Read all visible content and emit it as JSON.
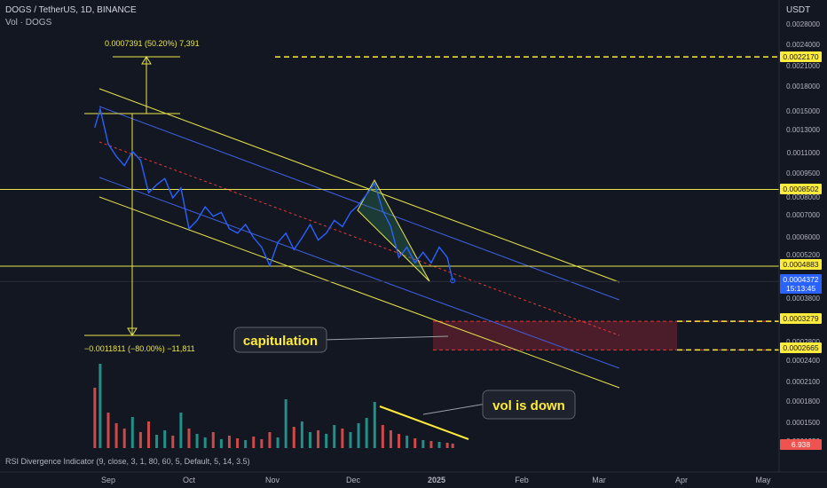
{
  "header": {
    "symbol_line": "DOGS / TetherUS, 1D, BINANCE",
    "vol_line": "Vol · DOGS",
    "currency": "USDT"
  },
  "indicator_label": "RSI Divergence Indicator (9, close, 3, 1, 80, 60, 5, Default, 5, 14, 3.5)",
  "colors": {
    "background": "#131722",
    "price_line": "#2962ff",
    "channel_outer": "#e8e44a",
    "channel_inner": "#3f5fe0",
    "midline": "#e53935",
    "capitulation_zone": "#5a1f2e",
    "vol_up": "#26a69a",
    "vol_down": "#ef5350",
    "yellow_tag": "#ffeb3b",
    "blue_tag": "#2962ff"
  },
  "price_axis": {
    "ticks": [
      "0.0028000",
      "0.0024000",
      "0.0021000",
      "0.0018000",
      "0.0015000",
      "0.0013000",
      "0.0011000",
      "0.0009500",
      "0.0008000",
      "0.0007000",
      "0.0006000",
      "0.0005200",
      "0.0003800",
      "0.0002800",
      "0.0002400",
      "0.0002100",
      "0.0001800",
      "0.0001500",
      "0.0001350"
    ]
  },
  "price_tags": [
    {
      "label": "0.0022170",
      "style": "yellow"
    },
    {
      "label": "0.0008502",
      "style": "yellow"
    },
    {
      "label": "0.0004883",
      "style": "yellow"
    },
    {
      "label": "0.0004372",
      "style": "blue"
    },
    {
      "label": "15:13:45",
      "style": "blue"
    },
    {
      "label": "0.0003279",
      "style": "yellow"
    },
    {
      "label": "0.0002665",
      "style": "yellow"
    },
    {
      "label": "6.938",
      "style": "red"
    }
  ],
  "time_axis": {
    "labels": [
      "Sep",
      "Oct",
      "Nov",
      "Dec",
      "2025",
      "Feb",
      "Mar",
      "Apr",
      "May"
    ]
  },
  "annotations": {
    "measure_top": "0.0007391 (50.20%) 7,391",
    "measure_bottom": "−0.0011811 (−80.00%) −11,811",
    "capitulation": "capitulation",
    "vol_down": "vol is down"
  },
  "chart_data": {
    "type": "line",
    "title": "DOGS / TetherUS, 1D, BINANCE",
    "xlabel": "",
    "ylabel": "",
    "log_scale": true,
    "ylim": [
      0.000135,
      0.0028
    ],
    "series": [
      {
        "name": "",
        "x": [
          "2024-08-27",
          "2024-08-29",
          "2024-09-01",
          "2024-09-04",
          "2024-09-07",
          "2024-09-10",
          "2024-09-13",
          "2024-09-16",
          "2024-09-19",
          "2024-09-22",
          "2024-09-25",
          "2024-09-28",
          "2024-10-01",
          "2024-10-04",
          "2024-10-07",
          "2024-10-10",
          "2024-10-13",
          "2024-10-16",
          "2024-10-19",
          "2024-10-22",
          "2024-10-25",
          "2024-10-28",
          "2024-10-31",
          "2024-11-03",
          "2024-11-06",
          "2024-11-09",
          "2024-11-12",
          "2024-11-15",
          "2024-11-18",
          "2024-11-21",
          "2024-11-24",
          "2024-11-27",
          "2024-11-30",
          "2024-12-03",
          "2024-12-06",
          "2024-12-09",
          "2024-12-12",
          "2024-12-15",
          "2024-12-18",
          "2024-12-21",
          "2024-12-24",
          "2024-12-27",
          "2024-12-30",
          "2025-01-02",
          "2025-01-05",
          "2025-01-07"
        ],
        "values": [
          0.00133,
          0.00152,
          0.00118,
          0.00108,
          0.00101,
          0.00112,
          0.00105,
          0.00083,
          0.00088,
          0.00092,
          0.0008,
          0.00086,
          0.00064,
          0.00068,
          0.00075,
          0.0007,
          0.00072,
          0.00064,
          0.00062,
          0.00066,
          0.0006,
          0.00056,
          0.00049,
          0.00058,
          0.00062,
          0.00055,
          0.0006,
          0.00066,
          0.00059,
          0.00062,
          0.00068,
          0.00065,
          0.00072,
          0.00076,
          0.00082,
          0.00089,
          0.00073,
          0.00065,
          0.00052,
          0.00056,
          0.0005,
          0.00054,
          0.0005,
          0.00056,
          0.00052,
          0.00044
        ]
      }
    ],
    "volume": [
      {
        "x": "2024-08-27",
        "v": 68
      },
      {
        "x": "2024-08-29",
        "v": 95
      },
      {
        "x": "2024-09-01",
        "v": 40
      },
      {
        "x": "2024-09-04",
        "v": 28
      },
      {
        "x": "2024-09-07",
        "v": 22
      },
      {
        "x": "2024-09-10",
        "v": 35
      },
      {
        "x": "2024-09-13",
        "v": 18
      },
      {
        "x": "2024-09-16",
        "v": 30
      },
      {
        "x": "2024-09-19",
        "v": 15
      },
      {
        "x": "2024-09-22",
        "v": 20
      },
      {
        "x": "2024-09-25",
        "v": 14
      },
      {
        "x": "2024-09-28",
        "v": 40
      },
      {
        "x": "2024-10-01",
        "v": 22
      },
      {
        "x": "2024-10-04",
        "v": 16
      },
      {
        "x": "2024-10-07",
        "v": 12
      },
      {
        "x": "2024-10-10",
        "v": 18
      },
      {
        "x": "2024-10-13",
        "v": 10
      },
      {
        "x": "2024-10-16",
        "v": 14
      },
      {
        "x": "2024-10-19",
        "v": 11
      },
      {
        "x": "2024-10-22",
        "v": 9
      },
      {
        "x": "2024-10-25",
        "v": 13
      },
      {
        "x": "2024-10-28",
        "v": 10
      },
      {
        "x": "2024-10-31",
        "v": 18
      },
      {
        "x": "2024-11-03",
        "v": 12
      },
      {
        "x": "2024-11-06",
        "v": 55
      },
      {
        "x": "2024-11-09",
        "v": 24
      },
      {
        "x": "2024-11-12",
        "v": 30
      },
      {
        "x": "2024-11-15",
        "v": 18
      },
      {
        "x": "2024-11-18",
        "v": 20
      },
      {
        "x": "2024-11-21",
        "v": 16
      },
      {
        "x": "2024-11-24",
        "v": 26
      },
      {
        "x": "2024-11-27",
        "v": 22
      },
      {
        "x": "2024-11-30",
        "v": 18
      },
      {
        "x": "2024-12-03",
        "v": 28
      },
      {
        "x": "2024-12-06",
        "v": 34
      },
      {
        "x": "2024-12-09",
        "v": 52
      },
      {
        "x": "2024-12-12",
        "v": 26
      },
      {
        "x": "2024-12-15",
        "v": 20
      },
      {
        "x": "2024-12-18",
        "v": 16
      },
      {
        "x": "2024-12-21",
        "v": 14
      },
      {
        "x": "2024-12-24",
        "v": 11
      },
      {
        "x": "2024-12-27",
        "v": 9
      },
      {
        "x": "2024-12-30",
        "v": 8
      },
      {
        "x": "2025-01-02",
        "v": 7
      },
      {
        "x": "2025-01-05",
        "v": 6
      },
      {
        "x": "2025-01-07",
        "v": 5
      }
    ],
    "levels": {
      "resistance_dashed": 0.002217,
      "horizontal_1": 0.0008502,
      "horizontal_2": 0.0004883,
      "last_price": 0.0004372,
      "zone_top": 0.0003279,
      "zone_bottom": 0.0002665
    },
    "grid": false,
    "legend": "none"
  }
}
